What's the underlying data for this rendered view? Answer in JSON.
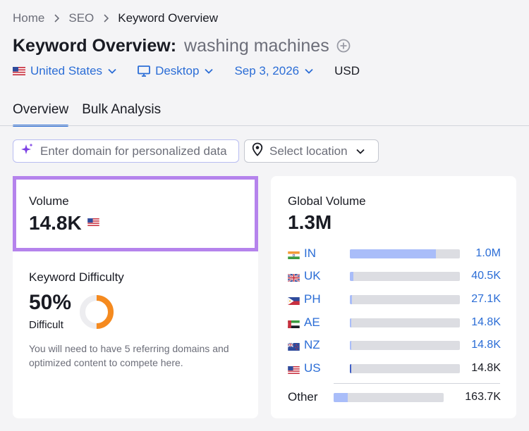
{
  "breadcrumb": [
    "Home",
    "SEO",
    "Keyword Overview"
  ],
  "header": {
    "title": "Keyword Overview:",
    "keyword": "washing machines"
  },
  "filters": {
    "country": "United States",
    "device": "Desktop",
    "date": "Sep 3, 2026",
    "currency": "USD"
  },
  "tabs": [
    {
      "label": "Overview",
      "active": true
    },
    {
      "label": "Bulk Analysis",
      "active": false
    }
  ],
  "toolbar": {
    "domain_placeholder": "Enter domain for personalized data",
    "location_placeholder": "Select location"
  },
  "volume": {
    "label": "Volume",
    "value": "14.8K",
    "flag_icon": "us-flag-icon"
  },
  "keyword_difficulty": {
    "label": "Keyword Difficulty",
    "value": "50%",
    "level": "Difficult",
    "percent": 50,
    "color": "#f58a1f",
    "note": "You will need to have 5 referring domains and optimized content to compete here."
  },
  "global_volume": {
    "label": "Global Volume",
    "value": "1.3M",
    "countries": [
      {
        "code": "IN",
        "value": "1.0M",
        "share": 0.78,
        "flag_icon": "in-flag-icon",
        "linked": true
      },
      {
        "code": "UK",
        "value": "40.5K",
        "share": 0.03,
        "flag_icon": "uk-flag-icon",
        "linked": true
      },
      {
        "code": "PH",
        "value": "27.1K",
        "share": 0.02,
        "flag_icon": "ph-flag-icon",
        "linked": true
      },
      {
        "code": "AE",
        "value": "14.8K",
        "share": 0.015,
        "flag_icon": "ae-flag-icon",
        "linked": true
      },
      {
        "code": "NZ",
        "value": "14.8K",
        "share": 0.015,
        "flag_icon": "nz-flag-icon",
        "linked": true
      },
      {
        "code": "US",
        "value": "14.8K",
        "share": 0.015,
        "flag_icon": "us-flag-icon",
        "linked": false
      }
    ],
    "other": {
      "label": "Other",
      "value": "163.7K",
      "share": 0.13
    }
  },
  "colors": {
    "accent": "#2b6dd6",
    "highlight_border": "#b583ec",
    "bar_fill": "#a9bdf9",
    "bar_track": "#dcdde2",
    "us_bar_fill": "#3f5fc7"
  }
}
